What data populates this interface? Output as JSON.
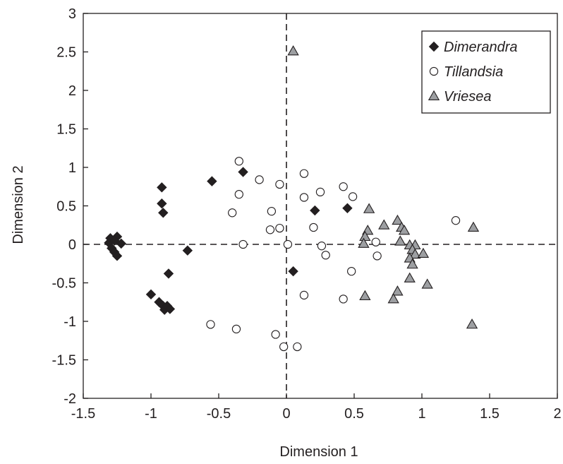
{
  "chart_data": {
    "type": "scatter",
    "title": "",
    "xlabel": "Dimension 1",
    "ylabel": "Dimension 2",
    "xlim": [
      -1.5,
      2
    ],
    "ylim": [
      -2,
      3
    ],
    "x_ticks": [
      "-1.5",
      "-1",
      "-0.5",
      "0",
      "0.5",
      "1",
      "1.5",
      "2"
    ],
    "y_ticks": [
      "3",
      "2.5",
      "2",
      "1.5",
      "1",
      "0.5",
      "0",
      "-0.5",
      "-1",
      "-1.5",
      "-2"
    ],
    "grid": false,
    "reference_lines": {
      "x": 0,
      "y": 0,
      "style": "dashed"
    },
    "legend_position": "top-right",
    "series": [
      {
        "name": "Dimerandra",
        "marker": "diamond",
        "color": "#231f20",
        "points": [
          [
            -1.3,
            0.08
          ],
          [
            -1.31,
            0.02
          ],
          [
            -1.29,
            -0.05
          ],
          [
            -1.27,
            -0.1
          ],
          [
            -1.25,
            -0.15
          ],
          [
            -1.25,
            0.1
          ],
          [
            -1.27,
            0.05
          ],
          [
            -1.22,
            0.01
          ],
          [
            -0.92,
            0.74
          ],
          [
            -0.92,
            0.53
          ],
          [
            -0.91,
            0.41
          ],
          [
            -0.73,
            -0.08
          ],
          [
            -0.55,
            0.82
          ],
          [
            -0.32,
            0.94
          ],
          [
            -1.0,
            -0.65
          ],
          [
            -0.94,
            -0.75
          ],
          [
            -0.91,
            -0.8
          ],
          [
            -0.9,
            -0.85
          ],
          [
            -0.88,
            -0.8
          ],
          [
            -0.86,
            -0.84
          ],
          [
            -0.87,
            -0.38
          ],
          [
            0.21,
            0.44
          ],
          [
            0.45,
            0.47
          ],
          [
            0.05,
            -0.35
          ]
        ]
      },
      {
        "name": "Tillandsia",
        "marker": "circle",
        "color": "#ffffff",
        "points": [
          [
            -0.35,
            1.08
          ],
          [
            -0.2,
            0.84
          ],
          [
            -0.05,
            0.78
          ],
          [
            -0.35,
            0.65
          ],
          [
            -0.4,
            0.41
          ],
          [
            -0.11,
            0.43
          ],
          [
            -0.12,
            0.19
          ],
          [
            -0.05,
            0.21
          ],
          [
            -0.32,
            0.0
          ],
          [
            0.01,
            0.0
          ],
          [
            0.13,
            0.92
          ],
          [
            0.13,
            0.61
          ],
          [
            0.25,
            0.68
          ],
          [
            0.42,
            0.75
          ],
          [
            0.49,
            0.62
          ],
          [
            0.2,
            0.22
          ],
          [
            0.26,
            -0.02
          ],
          [
            0.29,
            -0.14
          ],
          [
            0.48,
            -0.35
          ],
          [
            0.66,
            0.03
          ],
          [
            0.67,
            -0.15
          ],
          [
            1.25,
            0.31
          ],
          [
            0.13,
            -0.66
          ],
          [
            0.42,
            -0.71
          ],
          [
            -0.56,
            -1.04
          ],
          [
            -0.37,
            -1.1
          ],
          [
            -0.08,
            -1.17
          ],
          [
            -0.02,
            -1.33
          ],
          [
            0.08,
            -1.33
          ]
        ]
      },
      {
        "name": "Vriesea",
        "marker": "triangle",
        "color": "#9d9fa2",
        "points": [
          [
            0.05,
            2.51
          ],
          [
            0.61,
            0.46
          ],
          [
            0.72,
            0.25
          ],
          [
            0.82,
            0.31
          ],
          [
            0.85,
            0.22
          ],
          [
            0.87,
            0.18
          ],
          [
            0.6,
            0.18
          ],
          [
            0.58,
            0.1
          ],
          [
            0.57,
            0.01
          ],
          [
            0.84,
            0.04
          ],
          [
            0.91,
            -0.01
          ],
          [
            0.95,
            -0.01
          ],
          [
            0.93,
            -0.07
          ],
          [
            0.95,
            -0.13
          ],
          [
            1.01,
            -0.12
          ],
          [
            0.91,
            -0.18
          ],
          [
            0.93,
            -0.26
          ],
          [
            0.91,
            -0.44
          ],
          [
            1.04,
            -0.52
          ],
          [
            0.82,
            -0.61
          ],
          [
            0.79,
            -0.71
          ],
          [
            0.58,
            -0.67
          ],
          [
            1.38,
            0.22
          ],
          [
            1.37,
            -1.04
          ]
        ]
      }
    ]
  }
}
